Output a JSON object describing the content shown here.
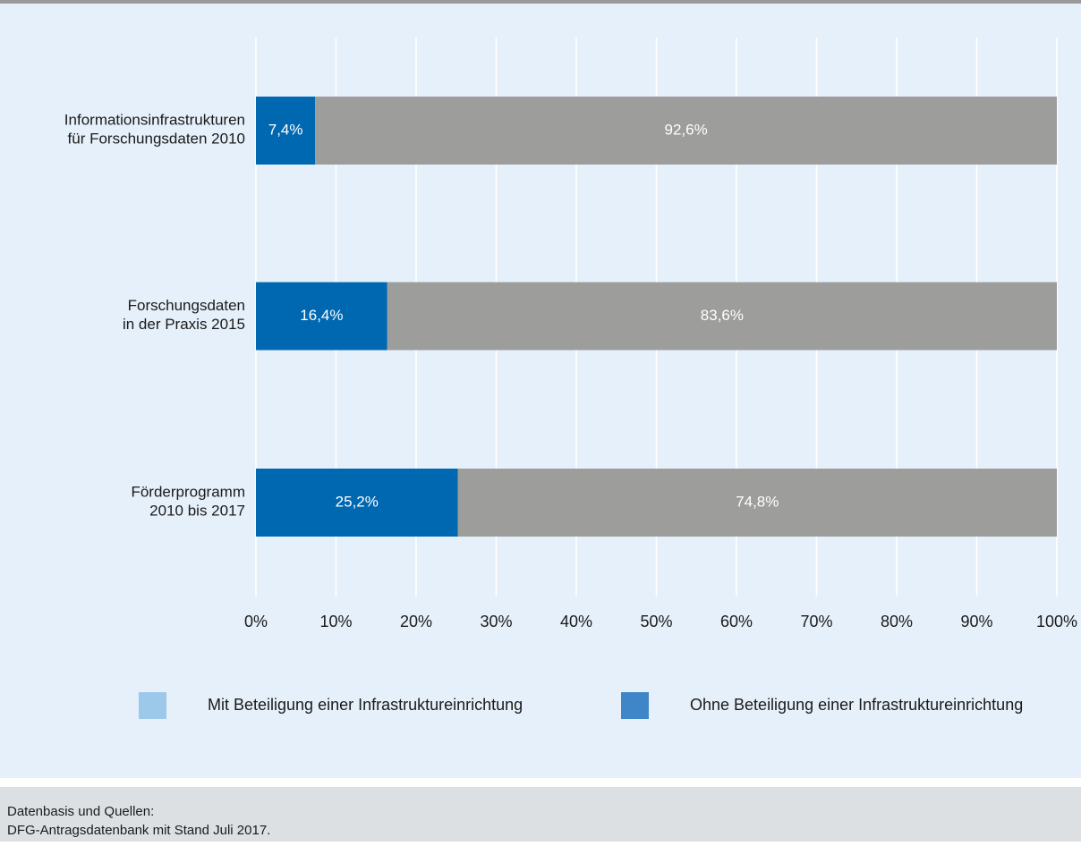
{
  "chart_data": {
    "type": "stacked_barh",
    "categories": [
      "Informationsinfrastrukturen\nfür Forschungsdaten 2010",
      "Forschungsdaten\nin der Praxis 2015",
      "Förderprogramm\n2010 bis 2017"
    ],
    "series": [
      {
        "name": "Mit Beteiligung einer Infrastruktureinrichtung",
        "color": "#0067b1",
        "legend_color": "#9cc8ea",
        "values": [
          7.4,
          16.4,
          25.2
        ],
        "value_labels": [
          "7,4%",
          "16,4%",
          "25,2%"
        ]
      },
      {
        "name": "Ohne Beteiligung einer Infrastruktureinrichtung",
        "color": "#9d9d9c",
        "legend_color": "#3f86c8",
        "values": [
          92.6,
          83.6,
          74.8
        ],
        "value_labels": [
          "92,6%",
          "83,6%",
          "74,8%"
        ]
      }
    ],
    "xlim": [
      0,
      100
    ],
    "xticks": [
      {
        "value": 0,
        "label": "0%"
      },
      {
        "value": 10,
        "label": "10%"
      },
      {
        "value": 20,
        "label": "20%"
      },
      {
        "value": 30,
        "label": "30%"
      },
      {
        "value": 40,
        "label": "40%"
      },
      {
        "value": 50,
        "label": "50%"
      },
      {
        "value": 60,
        "label": "60%"
      },
      {
        "value": 70,
        "label": "70%"
      },
      {
        "value": 80,
        "label": "80%"
      },
      {
        "value": 90,
        "label": "90%"
      },
      {
        "value": 100,
        "label": "100%"
      }
    ],
    "grid": true,
    "legend": "bottom",
    "source_title": "Datenbasis und Quellen:",
    "source": "DFG-Antragsdatenbank mit Stand Juli 2017."
  }
}
